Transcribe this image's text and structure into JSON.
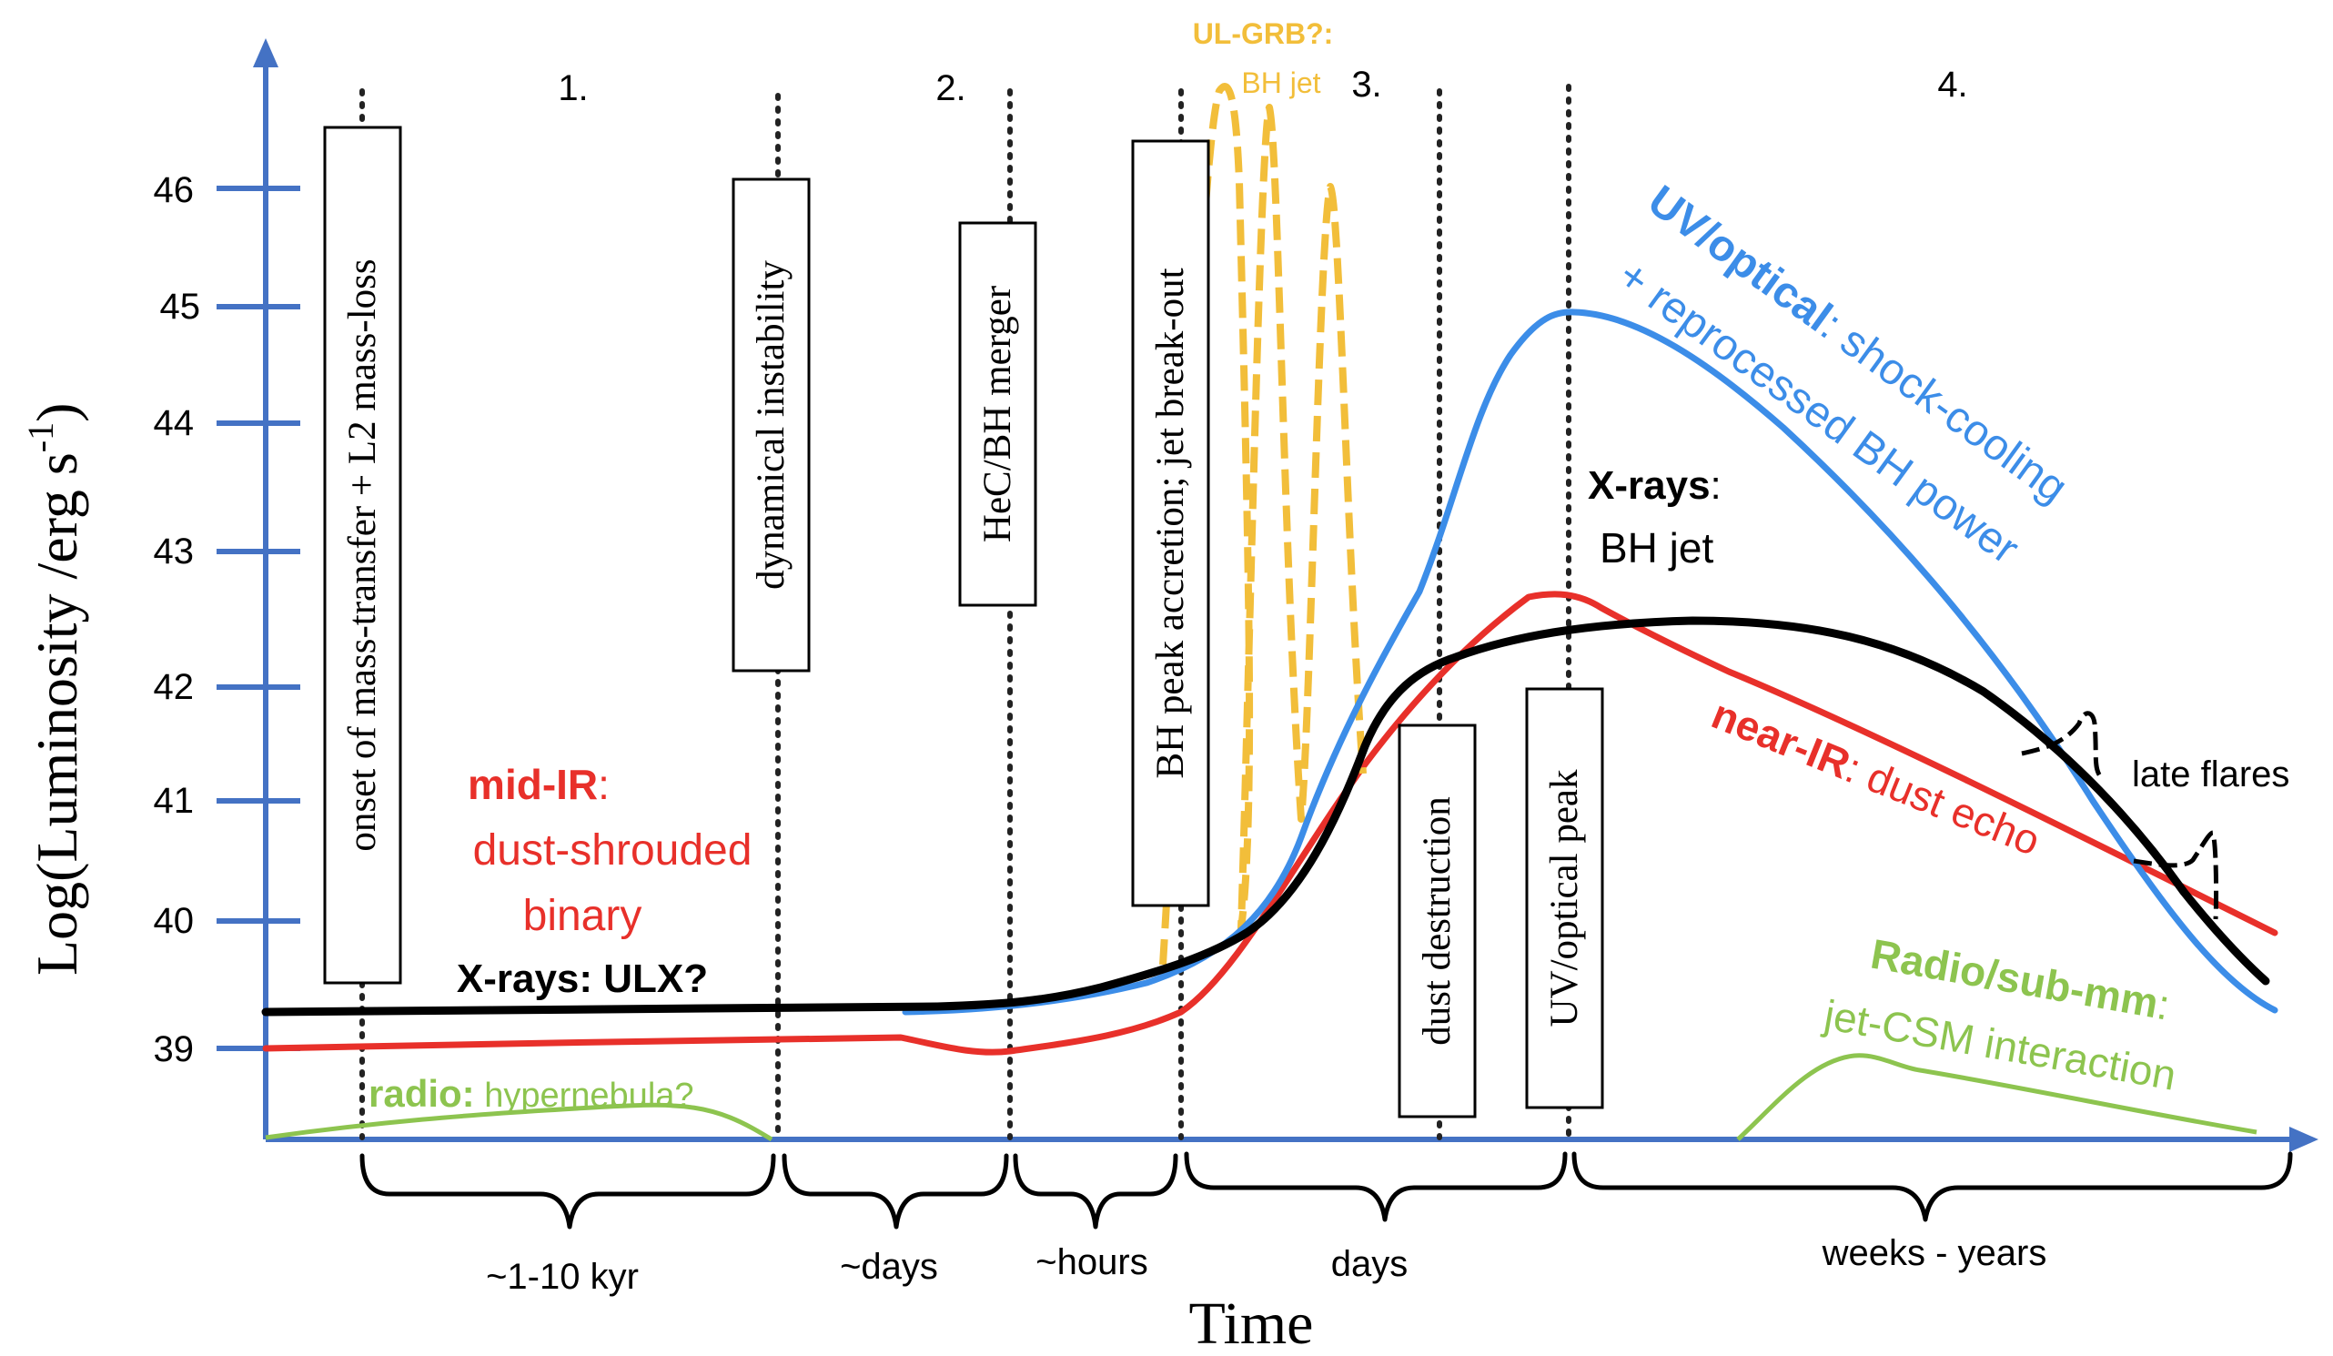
{
  "axes": {
    "y_label": "Log(Luminosity /erg s",
    "y_label_sup": "-1",
    "y_label_close": ")",
    "x_label": "Time",
    "y_ticks": [
      "46",
      "45",
      "44",
      "43",
      "42",
      "41",
      "40",
      "39"
    ],
    "color": "#4472c4"
  },
  "stages": [
    "1.",
    "2.",
    "3.",
    "4."
  ],
  "events": {
    "mass_transfer": "onset of mass-transfer + L2 mass-loss",
    "instability": "dynamical instability",
    "merger": "HeC/BH merger",
    "peak_accretion": "BH peak accretion; jet break-out",
    "dust_destruction": "dust destruction",
    "uv_peak": "UV/optical  peak"
  },
  "durations": [
    "~1-10 kyr",
    "~days",
    "~hours",
    "days",
    "weeks - years"
  ],
  "curves": {
    "mid_ir": {
      "title": "mid-IR",
      "sep": ":",
      "line2": "dust-shrouded",
      "line3": "binary",
      "color": "#e8302a"
    },
    "xray_ulx": {
      "text": "X-rays: ULX?",
      "color": "#000000"
    },
    "radio": {
      "title": "radio:",
      "text": " hypernebula?",
      "color": "#8dc44f"
    },
    "ul_grb": {
      "title": "UL-GRB?:",
      "text": "BH jet",
      "color": "#f2be3a"
    },
    "uv_optical": {
      "title": "UV/optical",
      "text": ": shock-cooling",
      "line2": "+ reprocessed BH power",
      "color": "#3c8de8"
    },
    "xray_jet": {
      "title": "X-rays",
      "sep": ":",
      "line2": "BH jet",
      "color": "#000000"
    },
    "near_ir": {
      "title": "near-IR",
      "text": ": dust echo",
      "color": "#e8302a"
    },
    "late_flares": {
      "text": "late flares"
    },
    "radio_submm": {
      "title": "Radio/sub-mm",
      "sep": ":",
      "line2": "jet-CSM interaction",
      "color": "#8dc44f"
    }
  }
}
